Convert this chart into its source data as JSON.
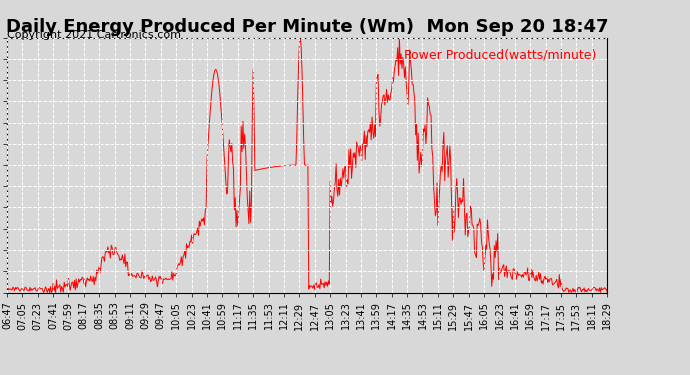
{
  "title": "Daily Energy Produced Per Minute (Wm)  Mon Sep 20 18:47",
  "copyright": "Copyright 2021 Cartronics.com",
  "legend_label": "Power Produced(watts/minute)",
  "line_color": "red",
  "background_color": "#d8d8d8",
  "plot_bg_color": "#d8d8d8",
  "ymax": 56.0,
  "ymin": 0.0,
  "yticks": [
    0.0,
    4.67,
    9.33,
    14.0,
    18.67,
    23.33,
    28.0,
    32.67,
    37.33,
    42.0,
    46.67,
    51.33,
    56.0
  ],
  "xtick_labels": [
    "06:47",
    "07:05",
    "07:23",
    "07:41",
    "07:59",
    "08:17",
    "08:35",
    "08:53",
    "09:11",
    "09:29",
    "09:47",
    "10:05",
    "10:23",
    "10:41",
    "10:59",
    "11:17",
    "11:35",
    "11:53",
    "12:11",
    "12:29",
    "12:47",
    "13:05",
    "13:23",
    "13:41",
    "13:59",
    "14:17",
    "14:35",
    "14:53",
    "15:11",
    "15:29",
    "15:47",
    "16:05",
    "16:23",
    "16:41",
    "16:59",
    "17:17",
    "17:35",
    "17:53",
    "18:11",
    "18:29"
  ],
  "grid_color": "#ffffff",
  "grid_linestyle": "--",
  "title_fontsize": 13,
  "tick_fontsize": 7,
  "legend_fontsize": 9,
  "copyright_fontsize": 8
}
